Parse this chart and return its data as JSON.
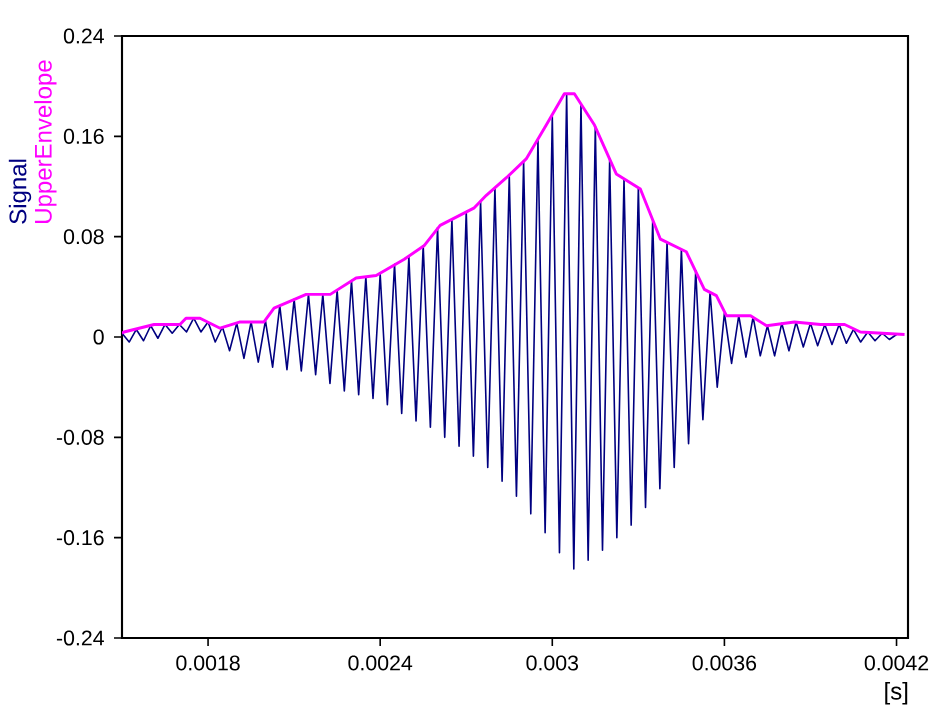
{
  "chart_data": {
    "type": "line",
    "xlabel": "[s]",
    "xlim": [
      0.0015,
      0.00424
    ],
    "xticks": [
      0.0018,
      0.0024,
      0.003,
      0.0036,
      0.0042
    ],
    "ylim": [
      -0.24,
      0.24
    ],
    "yticks": [
      -0.24,
      -0.16,
      -0.08,
      0,
      0.08,
      0.16,
      0.24
    ],
    "grid": false,
    "legend": "left",
    "series": [
      {
        "name": "Signal",
        "color": "#000080",
        "x": [
          0.0015,
          0.001525,
          0.00155,
          0.001575,
          0.0016,
          0.001625,
          0.00165,
          0.001675,
          0.0017,
          0.001725,
          0.00175,
          0.001775,
          0.0018,
          0.001825,
          0.00185,
          0.001875,
          0.0019,
          0.001925,
          0.00195,
          0.001975,
          0.002,
          0.002025,
          0.00205,
          0.002075,
          0.0021,
          0.002125,
          0.00215,
          0.002175,
          0.0022,
          0.002225,
          0.00225,
          0.002275,
          0.0023,
          0.002325,
          0.00235,
          0.002375,
          0.0024,
          0.002425,
          0.00245,
          0.002475,
          0.0025,
          0.002525,
          0.00255,
          0.002575,
          0.0026,
          0.002625,
          0.00265,
          0.002675,
          0.0027,
          0.002725,
          0.00275,
          0.002775,
          0.0028,
          0.002825,
          0.00285,
          0.002875,
          0.0029,
          0.002925,
          0.00295,
          0.002975,
          0.003,
          0.003025,
          0.00305,
          0.003075,
          0.0031,
          0.003125,
          0.00315,
          0.003175,
          0.0032,
          0.003225,
          0.00325,
          0.003275,
          0.0033,
          0.003325,
          0.00335,
          0.003375,
          0.0034,
          0.003425,
          0.00345,
          0.003475,
          0.0035,
          0.003525,
          0.00355,
          0.003575,
          0.0036,
          0.003625,
          0.00365,
          0.003675,
          0.0037,
          0.003725,
          0.00375,
          0.003775,
          0.0038,
          0.003825,
          0.00385,
          0.003875,
          0.0039,
          0.003925,
          0.00395,
          0.003975,
          0.004,
          0.004025,
          0.00405,
          0.004075,
          0.0041,
          0.004125,
          0.00415,
          0.004175,
          0.0042
        ],
        "values": [
          0.003,
          -0.004,
          0.006,
          -0.003,
          0.009,
          -0.001,
          0.01,
          0.003,
          0.01,
          0.004,
          0.015,
          0.004,
          0.012,
          -0.004,
          0.008,
          -0.011,
          0.011,
          -0.017,
          0.012,
          -0.02,
          0.013,
          -0.024,
          0.025,
          -0.026,
          0.03,
          -0.027,
          0.034,
          -0.03,
          0.034,
          -0.037,
          0.037,
          -0.043,
          0.045,
          -0.046,
          0.048,
          -0.049,
          0.05,
          -0.054,
          0.058,
          -0.061,
          0.064,
          -0.067,
          0.073,
          -0.072,
          0.087,
          -0.08,
          0.094,
          -0.087,
          0.1,
          -0.095,
          0.108,
          -0.104,
          0.119,
          -0.115,
          0.129,
          -0.127,
          0.14,
          -0.141,
          0.157,
          -0.156,
          0.176,
          -0.172,
          0.194,
          -0.185,
          0.186,
          -0.178,
          0.168,
          -0.17,
          0.142,
          -0.16,
          0.126,
          -0.15,
          0.119,
          -0.136,
          0.093,
          -0.121,
          0.076,
          -0.104,
          0.07,
          -0.085,
          0.053,
          -0.066,
          0.036,
          -0.04,
          0.019,
          -0.021,
          0.017,
          -0.016,
          0.016,
          -0.015,
          0.009,
          -0.015,
          0.011,
          -0.011,
          0.012,
          -0.008,
          0.011,
          -0.007,
          0.01,
          -0.006,
          0.01,
          -0.005,
          0.006,
          -0.004,
          0.004,
          -0.003,
          0.003,
          -0.002,
          0.002
        ]
      },
      {
        "name": "UpperEnvelope",
        "color": "#ff00ff",
        "x": [
          0.0015,
          0.001507,
          0.001612,
          0.001702,
          0.001723,
          0.001772,
          0.001842,
          0.001912,
          0.001995,
          0.00203,
          0.002142,
          0.002226,
          0.002316,
          0.002386,
          0.002484,
          0.002554,
          0.002609,
          0.002728,
          0.00277,
          0.00284,
          0.002909,
          0.002979,
          0.003042,
          0.003077,
          0.003147,
          0.003223,
          0.003307,
          0.003377,
          0.003467,
          0.00353,
          0.003572,
          0.003607,
          0.003691,
          0.003747,
          0.003844,
          0.003935,
          0.004019,
          0.004074,
          0.004228
        ],
        "values": [
          0.003,
          0.004,
          0.01,
          0.01,
          0.015,
          0.015,
          0.007,
          0.012,
          0.012,
          0.023,
          0.034,
          0.034,
          0.047,
          0.049,
          0.062,
          0.073,
          0.089,
          0.103,
          0.113,
          0.127,
          0.142,
          0.169,
          0.194,
          0.194,
          0.169,
          0.13,
          0.118,
          0.078,
          0.068,
          0.038,
          0.033,
          0.017,
          0.017,
          0.009,
          0.012,
          0.01,
          0.01,
          0.004,
          0.002
        ]
      }
    ]
  }
}
